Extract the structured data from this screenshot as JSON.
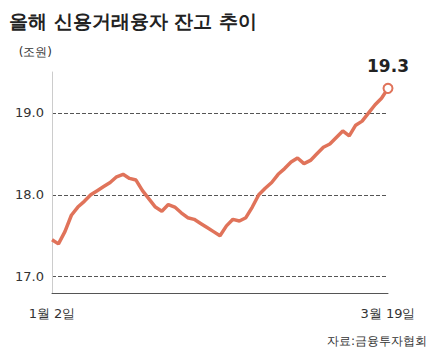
{
  "chart_data": {
    "type": "line",
    "title": "올해 신용거래융자 잔고 추이",
    "y_label": "(조원)",
    "source": "자료:금융투자협회",
    "categories": [
      "1월 2일",
      null,
      null,
      null,
      null,
      null,
      null,
      null,
      null,
      null,
      null,
      null,
      null,
      null,
      null,
      null,
      null,
      null,
      null,
      null,
      null,
      null,
      null,
      null,
      null,
      null,
      null,
      null,
      null,
      null,
      null,
      null,
      null,
      null,
      null,
      null,
      null,
      null,
      null,
      null,
      null,
      null,
      null,
      null,
      null,
      null,
      null,
      null,
      null,
      null,
      null,
      null,
      "3월 19일"
    ],
    "values": [
      17.45,
      17.4,
      17.55,
      17.75,
      17.85,
      17.92,
      18.0,
      18.05,
      18.1,
      18.15,
      18.22,
      18.25,
      18.2,
      18.18,
      18.05,
      17.95,
      17.85,
      17.8,
      17.88,
      17.85,
      17.78,
      17.72,
      17.7,
      17.65,
      17.6,
      17.55,
      17.5,
      17.62,
      17.7,
      17.68,
      17.72,
      17.85,
      18.0,
      18.08,
      18.15,
      18.25,
      18.32,
      18.4,
      18.45,
      18.38,
      18.42,
      18.5,
      18.58,
      18.62,
      18.7,
      18.78,
      18.72,
      18.85,
      18.9,
      19.0,
      19.1,
      19.18,
      19.3
    ],
    "color": "#e0735a",
    "ylim": [
      16.8,
      19.5
    ],
    "yticks": [
      {
        "value": 17,
        "label": "17.0"
      },
      {
        "value": 18,
        "label": "18.0"
      },
      {
        "value": 19,
        "label": "19.0"
      }
    ],
    "grid": true,
    "annotations": [
      {
        "text": "19.3",
        "x": "3월 19일",
        "y": 19.3
      }
    ]
  }
}
